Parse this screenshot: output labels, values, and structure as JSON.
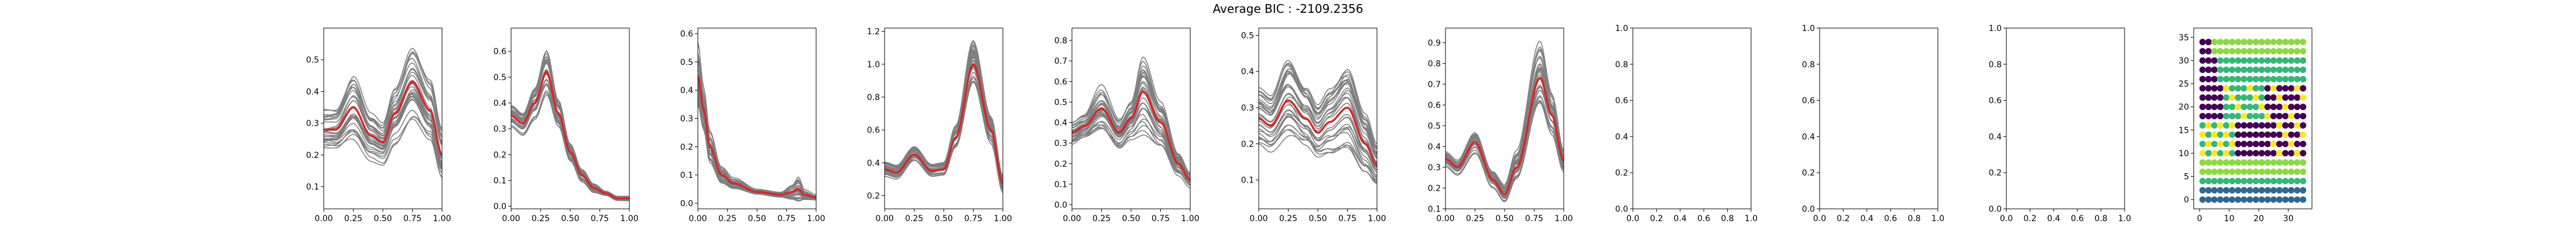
{
  "figure": {
    "title": "Average BIC : -2109.2356",
    "colors": {
      "sample_line": "#7f7f7f",
      "mean_line": "#d62728",
      "frame": "#000000"
    }
  },
  "chart_data": [
    {
      "type": "line",
      "xlim": [
        0,
        1
      ],
      "ylim": [
        0.03,
        0.6
      ],
      "xticks": [
        "0.00",
        "0.25",
        "0.50",
        "0.75",
        "1.00"
      ],
      "yticks": [
        "0.1",
        "0.2",
        "0.3",
        "0.4",
        "0.5"
      ],
      "ytick_values": [
        0.1,
        0.2,
        0.3,
        0.4,
        0.5
      ],
      "series_count": 30,
      "mean_curve": {
        "x": [
          0,
          0.1,
          0.25,
          0.4,
          0.5,
          0.6,
          0.75,
          0.9,
          1.0
        ],
        "y": [
          0.28,
          0.28,
          0.35,
          0.26,
          0.24,
          0.33,
          0.43,
          0.34,
          0.2
        ]
      },
      "spread": [
        0.08,
        0.08,
        0.12,
        0.08,
        0.07,
        0.1,
        0.14,
        0.12,
        0.1
      ]
    },
    {
      "type": "line",
      "xlim": [
        0,
        1
      ],
      "ylim": [
        -0.01,
        0.69
      ],
      "xticks": [
        "0.00",
        "0.25",
        "0.50",
        "0.75",
        "1.00"
      ],
      "yticks": [
        "0.0",
        "0.1",
        "0.2",
        "0.3",
        "0.4",
        "0.5",
        "0.6"
      ],
      "ytick_values": [
        0,
        0.1,
        0.2,
        0.3,
        0.4,
        0.5,
        0.6
      ],
      "series_count": 30,
      "mean_curve": {
        "x": [
          0,
          0.1,
          0.2,
          0.3,
          0.4,
          0.5,
          0.6,
          0.7,
          0.8,
          0.9,
          1.0
        ],
        "y": [
          0.35,
          0.32,
          0.4,
          0.52,
          0.36,
          0.21,
          0.12,
          0.07,
          0.05,
          0.03,
          0.03
        ]
      },
      "spread": [
        0.05,
        0.05,
        0.07,
        0.1,
        0.06,
        0.04,
        0.03,
        0.02,
        0.01,
        0.01,
        0.01
      ]
    },
    {
      "type": "line",
      "xlim": [
        0,
        1
      ],
      "ylim": [
        -0.02,
        0.62
      ],
      "xticks": [
        "0.00",
        "0.25",
        "0.50",
        "0.75",
        "1.00"
      ],
      "yticks": [
        "0.0",
        "0.1",
        "0.2",
        "0.3",
        "0.4",
        "0.5",
        "0.6"
      ],
      "ytick_values": [
        0,
        0.1,
        0.2,
        0.3,
        0.4,
        0.5,
        0.6
      ],
      "series_count": 30,
      "mean_curve": {
        "x": [
          0,
          0.05,
          0.1,
          0.2,
          0.3,
          0.5,
          0.7,
          0.8,
          0.85,
          0.9,
          1.0
        ],
        "y": [
          0.45,
          0.33,
          0.2,
          0.1,
          0.07,
          0.04,
          0.03,
          0.04,
          0.05,
          0.03,
          0.02
        ]
      },
      "spread": [
        0.12,
        0.08,
        0.06,
        0.03,
        0.02,
        0.01,
        0.01,
        0.03,
        0.05,
        0.02,
        0.01
      ]
    },
    {
      "type": "line",
      "xlim": [
        0,
        1
      ],
      "ylim": [
        0.12,
        1.22
      ],
      "xticks": [
        "0.00",
        "0.25",
        "0.50",
        "0.75",
        "1.00"
      ],
      "yticks": [
        "0.2",
        "0.4",
        "0.6",
        "0.8",
        "1.0",
        "1.2"
      ],
      "ytick_values": [
        0.2,
        0.4,
        0.6,
        0.8,
        1.0,
        1.2
      ],
      "series_count": 30,
      "mean_curve": {
        "x": [
          0,
          0.1,
          0.25,
          0.4,
          0.5,
          0.6,
          0.75,
          0.9,
          1.0
        ],
        "y": [
          0.36,
          0.34,
          0.45,
          0.35,
          0.36,
          0.55,
          1.0,
          0.6,
          0.27
        ]
      },
      "spread": [
        0.05,
        0.05,
        0.06,
        0.05,
        0.05,
        0.08,
        0.16,
        0.1,
        0.06
      ]
    },
    {
      "type": "line",
      "xlim": [
        0,
        1
      ],
      "ylim": [
        -0.02,
        0.86
      ],
      "xticks": [
        "0.00",
        "0.25",
        "0.50",
        "0.75",
        "1.00"
      ],
      "yticks": [
        "0.0",
        "0.1",
        "0.2",
        "0.3",
        "0.4",
        "0.5",
        "0.6",
        "0.7",
        "0.8"
      ],
      "ytick_values": [
        0,
        0.1,
        0.2,
        0.3,
        0.4,
        0.5,
        0.6,
        0.7,
        0.8
      ],
      "series_count": 30,
      "mean_curve": {
        "x": [
          0,
          0.1,
          0.25,
          0.4,
          0.5,
          0.6,
          0.75,
          0.9,
          1.0
        ],
        "y": [
          0.35,
          0.38,
          0.47,
          0.35,
          0.42,
          0.55,
          0.4,
          0.2,
          0.12
        ]
      },
      "spread": [
        0.06,
        0.06,
        0.12,
        0.08,
        0.1,
        0.2,
        0.12,
        0.06,
        0.04
      ]
    },
    {
      "type": "line",
      "xlim": [
        0,
        1
      ],
      "ylim": [
        0.02,
        0.52
      ],
      "xticks": [
        "0.00",
        "0.25",
        "0.50",
        "0.75",
        "1.00"
      ],
      "yticks": [
        "0.1",
        "0.2",
        "0.3",
        "0.4",
        "0.5"
      ],
      "ytick_values": [
        0.1,
        0.2,
        0.3,
        0.4,
        0.5
      ],
      "series_count": 30,
      "mean_curve": {
        "x": [
          0,
          0.1,
          0.25,
          0.4,
          0.5,
          0.6,
          0.75,
          0.9,
          1.0
        ],
        "y": [
          0.27,
          0.25,
          0.32,
          0.27,
          0.23,
          0.26,
          0.3,
          0.2,
          0.14
        ]
      },
      "spread": [
        0.1,
        0.1,
        0.15,
        0.12,
        0.1,
        0.12,
        0.14,
        0.1,
        0.07
      ]
    },
    {
      "type": "line",
      "xlim": [
        0,
        1
      ],
      "ylim": [
        0.1,
        0.97
      ],
      "xticks": [
        "0.00",
        "0.25",
        "0.50",
        "0.75",
        "1.00"
      ],
      "yticks": [
        "0.1",
        "0.2",
        "0.3",
        "0.4",
        "0.5",
        "0.6",
        "0.7",
        "0.8",
        "0.9"
      ],
      "ytick_values": [
        0.1,
        0.2,
        0.3,
        0.4,
        0.5,
        0.6,
        0.7,
        0.8,
        0.9
      ],
      "series_count": 30,
      "mean_curve": {
        "x": [
          0,
          0.1,
          0.25,
          0.4,
          0.5,
          0.6,
          0.8,
          0.9,
          1.0
        ],
        "y": [
          0.34,
          0.3,
          0.42,
          0.24,
          0.17,
          0.3,
          0.73,
          0.55,
          0.33
        ]
      },
      "spread": [
        0.04,
        0.04,
        0.06,
        0.05,
        0.05,
        0.08,
        0.18,
        0.12,
        0.06
      ]
    },
    {
      "type": "line",
      "xlim": [
        0,
        1
      ],
      "ylim": [
        0,
        1
      ],
      "xticks": [
        "0.0",
        "0.2",
        "0.4",
        "0.6",
        "0.8",
        "1.0"
      ],
      "yticks": [
        "0.0",
        "0.2",
        "0.4",
        "0.6",
        "0.8",
        "1.0"
      ],
      "ytick_values": [
        0,
        0.2,
        0.4,
        0.6,
        0.8,
        1.0
      ],
      "series_count": 0
    },
    {
      "type": "line",
      "xlim": [
        0,
        1
      ],
      "ylim": [
        0,
        1
      ],
      "xticks": [
        "0.0",
        "0.2",
        "0.4",
        "0.6",
        "0.8",
        "1.0"
      ],
      "yticks": [
        "0.0",
        "0.2",
        "0.4",
        "0.6",
        "0.8",
        "1.0"
      ],
      "ytick_values": [
        0,
        0.2,
        0.4,
        0.6,
        0.8,
        1.0
      ],
      "series_count": 0
    },
    {
      "type": "line",
      "xlim": [
        0,
        1
      ],
      "ylim": [
        0,
        1
      ],
      "xticks": [
        "0.0",
        "0.2",
        "0.4",
        "0.6",
        "0.8",
        "1.0"
      ],
      "yticks": [
        "0.0",
        "0.2",
        "0.4",
        "0.6",
        "0.8",
        "1.0"
      ],
      "ytick_values": [
        0,
        0.2,
        0.4,
        0.6,
        0.8,
        1.0
      ],
      "series_count": 0
    },
    {
      "type": "scatter",
      "xlim": [
        -2,
        38
      ],
      "ylim": [
        -2,
        37
      ],
      "xticks": [
        "0",
        "10",
        "20",
        "30"
      ],
      "xtick_values": [
        0,
        10,
        20,
        30
      ],
      "yticks": [
        "0",
        "5",
        "10",
        "15",
        "20",
        "25",
        "30",
        "35"
      ],
      "ytick_values": [
        0,
        5,
        10,
        15,
        20,
        25,
        30,
        35
      ],
      "grid": {
        "cols": 18,
        "rows": 18,
        "step": 2
      },
      "palette": [
        "#440154",
        "#31688e",
        "#35b779",
        "#fde725",
        "#8fd744"
      ]
    }
  ]
}
